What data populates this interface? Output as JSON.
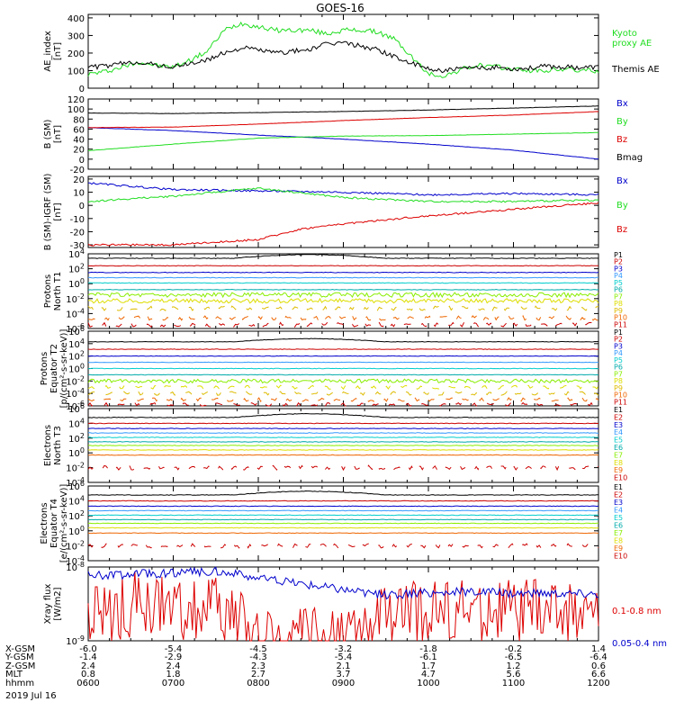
{
  "title": "GOES-16",
  "date_label": "2019 Jul 16",
  "colors": {
    "black": "#000000",
    "blue": "#0000cc",
    "green": "#22dd22",
    "red": "#dd0000",
    "cyan": "#00cccc",
    "ltblue": "#3399ff",
    "teal": "#00aaaa",
    "lime": "#88ee00",
    "yellow": "#dddd00",
    "gold": "#ddbb00",
    "orange": "#ee6600",
    "crimson": "#cc0000"
  },
  "chart_data": [
    {
      "id": "ae",
      "type": "line",
      "title": "AE_index",
      "ylabel": "AE index [nT]",
      "ylabel_lines": [
        "AE_index",
        "[nT]"
      ],
      "ylim": [
        0,
        420
      ],
      "yticks": [
        0,
        100,
        200,
        300,
        400
      ],
      "scale": "linear",
      "series": [
        {
          "name": "Kyoto proxy AE",
          "color_key": "green",
          "legend_lines": [
            "Kyoto",
            "proxy AE"
          ],
          "x": [
            6.0,
            6.2,
            6.4,
            6.6,
            6.8,
            7.0,
            7.2,
            7.4,
            7.6,
            7.8,
            8.0,
            8.2,
            8.4,
            8.6,
            8.8,
            9.0,
            9.2,
            9.4,
            9.6,
            9.8,
            10.0,
            10.2,
            10.4,
            10.6,
            10.8,
            11.0,
            11.2,
            11.4,
            11.6,
            11.8,
            12.0
          ],
          "values": [
            80,
            95,
            120,
            150,
            130,
            120,
            160,
            210,
            330,
            370,
            350,
            330,
            330,
            330,
            310,
            330,
            330,
            320,
            280,
            180,
            80,
            70,
            110,
            130,
            120,
            110,
            100,
            100,
            110,
            100,
            100
          ]
        },
        {
          "name": "Themis AE",
          "color_key": "black",
          "legend_lines": [
            "Themis AE"
          ],
          "x": [
            6.0,
            6.2,
            6.4,
            6.6,
            6.8,
            7.0,
            7.2,
            7.4,
            7.6,
            7.8,
            8.0,
            8.2,
            8.4,
            8.6,
            8.8,
            9.0,
            9.2,
            9.4,
            9.6,
            9.8,
            10.0,
            10.2,
            10.4,
            10.6,
            10.8,
            11.0,
            11.2,
            11.4,
            11.6,
            11.8,
            12.0
          ],
          "values": [
            120,
            125,
            140,
            150,
            130,
            120,
            140,
            160,
            200,
            230,
            220,
            200,
            210,
            220,
            250,
            260,
            240,
            220,
            180,
            140,
            110,
            100,
            110,
            115,
            120,
            110,
            115,
            125,
            120,
            118,
            120
          ]
        }
      ]
    },
    {
      "id": "bsm",
      "type": "line",
      "ylabel": "B (SM) [nT]",
      "ylabel_lines": [
        "B (SM)",
        "[nT]"
      ],
      "ylim": [
        -20,
        120
      ],
      "yticks": [
        -20,
        0,
        20,
        40,
        60,
        80,
        100,
        120
      ],
      "scale": "linear",
      "series": [
        {
          "name": "Bx",
          "color_key": "blue",
          "x": [
            6,
            7,
            8,
            9,
            10,
            11,
            12
          ],
          "values": [
            63,
            57,
            48,
            40,
            30,
            18,
            0
          ]
        },
        {
          "name": "By",
          "color_key": "green",
          "x": [
            6,
            7,
            8,
            9,
            10,
            11,
            12
          ],
          "values": [
            17,
            30,
            42,
            46,
            47,
            50,
            53
          ]
        },
        {
          "name": "Bz",
          "color_key": "red",
          "x": [
            6,
            7,
            8,
            9,
            10,
            11,
            12
          ],
          "values": [
            63,
            64,
            70,
            77,
            83,
            88,
            95
          ]
        },
        {
          "name": "Bmag",
          "color_key": "black",
          "x": [
            6,
            7,
            8,
            9,
            10,
            11,
            12
          ],
          "values": [
            92,
            91,
            93,
            95,
            98,
            102,
            106
          ]
        }
      ]
    },
    {
      "id": "bigrf",
      "type": "line",
      "ylabel": "B (SM)-IGRF (SM) [nT]",
      "ylabel_lines": [
        "B (SM)-IGRF (SM)",
        "[nT]"
      ],
      "ylim": [
        -32,
        22
      ],
      "yticks": [
        -30,
        -20,
        -10,
        0,
        10,
        20
      ],
      "scale": "linear",
      "series": [
        {
          "name": "Bx",
          "color_key": "blue",
          "x": [
            6,
            7,
            8,
            9,
            10,
            11,
            12
          ],
          "values": [
            17,
            12,
            11,
            10,
            8,
            9,
            8
          ]
        },
        {
          "name": "By",
          "color_key": "green",
          "x": [
            6,
            7,
            8,
            9,
            10,
            11,
            12
          ],
          "values": [
            3,
            7,
            13,
            6,
            3,
            3,
            4
          ]
        },
        {
          "name": "Bz",
          "color_key": "red",
          "x": [
            6,
            7,
            8,
            8.5,
            9,
            10,
            11,
            12
          ],
          "values": [
            -30,
            -30,
            -26,
            -18,
            -14,
            -8,
            -3,
            2
          ]
        }
      ]
    },
    {
      "id": "protons_t1",
      "type": "line",
      "ylabel": "Protons North T1",
      "ylabel_lines": [
        "Protons",
        "North T1"
      ],
      "ylim_exp": [
        -6,
        4
      ],
      "ytick_labels": [
        "10^4",
        "10^2",
        "10^0",
        "10^-2",
        "10^-4",
        "10^-6"
      ],
      "yticks": [
        4,
        2,
        0,
        -2,
        -4,
        -6
      ],
      "scale": "log",
      "series": [
        {
          "name": "P1",
          "color_key": "black",
          "level": 3.4
        },
        {
          "name": "P2",
          "color_key": "crimson",
          "level": 2.4
        },
        {
          "name": "P3",
          "color_key": "blue",
          "level": 1.5
        },
        {
          "name": "P4",
          "color_key": "ltblue",
          "level": 0.8
        },
        {
          "name": "P5",
          "color_key": "cyan",
          "level": 0.1
        },
        {
          "name": "P6",
          "color_key": "teal",
          "level": -0.8
        },
        {
          "name": "P7",
          "color_key": "lime",
          "level": -1.5
        },
        {
          "name": "P8",
          "color_key": "yellow",
          "level": -2.3
        },
        {
          "name": "P9",
          "color_key": "gold",
          "level": -3.3
        },
        {
          "name": "P10",
          "color_key": "orange",
          "level": -4.6
        },
        {
          "name": "P11",
          "color_key": "crimson",
          "level": -5.5
        }
      ]
    },
    {
      "id": "protons_t2",
      "type": "line",
      "ylabel": "Protons Equator T2 [p/(cm²-s-sr-keV)]",
      "ylabel_lines": [
        "Protons",
        "Equator T2",
        "[p/(cm²-s-sr-keV)]"
      ],
      "ylim_exp": [
        -6,
        6
      ],
      "ytick_labels": [
        "10^6",
        "10^4",
        "10^2",
        "10^0",
        "10^-2",
        "10^-4",
        "10^-6"
      ],
      "yticks": [
        6,
        4,
        2,
        0,
        -2,
        -4,
        -6
      ],
      "scale": "log",
      "series": [
        {
          "name": "P1",
          "color_key": "black",
          "level": 4.3
        },
        {
          "name": "P2",
          "color_key": "crimson",
          "level": 3.1
        },
        {
          "name": "P3",
          "color_key": "blue",
          "level": 2.0
        },
        {
          "name": "P4",
          "color_key": "ltblue",
          "level": 1.0
        },
        {
          "name": "P5",
          "color_key": "cyan",
          "level": 0.0
        },
        {
          "name": "P6",
          "color_key": "teal",
          "level": -1.0
        },
        {
          "name": "P7",
          "color_key": "lime",
          "level": -2.0
        },
        {
          "name": "P8",
          "color_key": "yellow",
          "level": -3.0
        },
        {
          "name": "P9",
          "color_key": "gold",
          "level": -4.0
        },
        {
          "name": "P10",
          "color_key": "orange",
          "level": -5.0
        },
        {
          "name": "P11",
          "color_key": "crimson",
          "level": -5.8
        }
      ]
    },
    {
      "id": "electrons_t3",
      "type": "line",
      "ylabel": "Electrons North T3",
      "ylabel_lines": [
        "Electrons",
        "North T3"
      ],
      "ylim_exp": [
        -4,
        6
      ],
      "ytick_labels": [
        "10^6",
        "10^4",
        "10^2",
        "10^0",
        "10^-2",
        "10^-4"
      ],
      "yticks": [
        6,
        4,
        2,
        0,
        -2,
        -4
      ],
      "scale": "log",
      "series": [
        {
          "name": "E1",
          "color_key": "black",
          "level": 4.8
        },
        {
          "name": "E2",
          "color_key": "crimson",
          "level": 4.0
        },
        {
          "name": "E3",
          "color_key": "blue",
          "level": 3.3
        },
        {
          "name": "E4",
          "color_key": "ltblue",
          "level": 2.7
        },
        {
          "name": "E5",
          "color_key": "cyan",
          "level": 2.1
        },
        {
          "name": "E6",
          "color_key": "teal",
          "level": 1.5
        },
        {
          "name": "E7",
          "color_key": "lime",
          "level": 1.0
        },
        {
          "name": "E8",
          "color_key": "yellow",
          "level": 0.4
        },
        {
          "name": "E9",
          "color_key": "orange",
          "level": -0.3
        },
        {
          "name": "E10",
          "color_key": "crimson",
          "level": -2.0
        }
      ]
    },
    {
      "id": "electrons_t4",
      "type": "line",
      "ylabel": "Electrons Equator T4 [e/(cm²-s-sr-keV)]",
      "ylabel_lines": [
        "Electrons",
        "Equator T4",
        "[e/(cm²-s-sr-keV)]"
      ],
      "ylim_exp": [
        -4,
        6
      ],
      "ytick_labels": [
        "10^6",
        "10^4",
        "10^2",
        "10^0",
        "10^-2",
        "10^-4"
      ],
      "yticks": [
        6,
        4,
        2,
        0,
        -2,
        -4
      ],
      "scale": "log",
      "series": [
        {
          "name": "E1",
          "color_key": "black",
          "level": 4.8
        },
        {
          "name": "E2",
          "color_key": "crimson",
          "level": 4.0
        },
        {
          "name": "E3",
          "color_key": "blue",
          "level": 3.3
        },
        {
          "name": "E4",
          "color_key": "ltblue",
          "level": 2.7
        },
        {
          "name": "E5",
          "color_key": "cyan",
          "level": 2.1
        },
        {
          "name": "E6",
          "color_key": "teal",
          "level": 1.5
        },
        {
          "name": "E7",
          "color_key": "lime",
          "level": 1.0
        },
        {
          "name": "E8",
          "color_key": "yellow",
          "level": 0.4
        },
        {
          "name": "E9",
          "color_key": "orange",
          "level": -0.3
        },
        {
          "name": "E10",
          "color_key": "crimson",
          "level": -2.0
        }
      ]
    },
    {
      "id": "xray",
      "type": "line",
      "ylabel": "Xray flux [W/m2]",
      "ylabel_lines": [
        "Xray flux",
        "[W/m2]"
      ],
      "ylim_exp": [
        -9,
        -8
      ],
      "ytick_labels": [
        "10^-8",
        "10^-9"
      ],
      "yticks": [
        -8,
        -9
      ],
      "scale": "log",
      "series": [
        {
          "name": "0.1-0.8 nm",
          "color_key": "red",
          "legend_lines": [
            "0.1-0.8 nm"
          ],
          "x": [
            6.0,
            6.5,
            7.0,
            7.5,
            8.0,
            8.5,
            9.0,
            9.5,
            10.0,
            10.5,
            11.0,
            11.5,
            12.0
          ],
          "values": [
            -8.7,
            -8.5,
            -8.6,
            -8.5,
            -9.0,
            -9.0,
            -9.0,
            -8.7,
            -8.6,
            -8.6,
            -8.6,
            -8.6,
            -8.6
          ]
        },
        {
          "name": "0.05-0.4 nm",
          "color_key": "blue",
          "legend_lines": [
            "0.05-0.4 nm"
          ],
          "x": [
            6.0,
            6.5,
            7.0,
            7.5,
            8.0,
            8.5,
            9.0,
            9.5,
            10.0,
            10.5,
            11.0,
            11.5,
            12.0
          ],
          "values": [
            -8.12,
            -8.1,
            -8.08,
            -8.05,
            -8.15,
            -8.22,
            -8.3,
            -8.38,
            -8.35,
            -8.33,
            -8.35,
            -8.35,
            -8.36
          ]
        }
      ]
    }
  ],
  "x_axis": {
    "row_labels": [
      "X-GSM",
      "Y-GSM",
      "Z-GSM",
      "MLT",
      "hhmm"
    ],
    "x": [
      6,
      7,
      8,
      9,
      10,
      11,
      12
    ],
    "rows": [
      [
        "-6.0",
        "-5.4",
        "-4.5",
        "-3.2",
        "-1.8",
        "-0.2",
        "1.4"
      ],
      [
        "-1.4",
        "-2.9",
        "-4.3",
        "-5.4",
        "-6.1",
        "-6.5",
        "-6.4"
      ],
      [
        "2.4",
        "2.4",
        "2.3",
        "2.1",
        "1.7",
        "1.2",
        "0.6"
      ],
      [
        "0.8",
        "1.8",
        "2.7",
        "3.7",
        "4.7",
        "5.6",
        "6.6"
      ],
      [
        "0600",
        "0700",
        "0800",
        "0900",
        "1000",
        "1100",
        "1200"
      ]
    ]
  }
}
